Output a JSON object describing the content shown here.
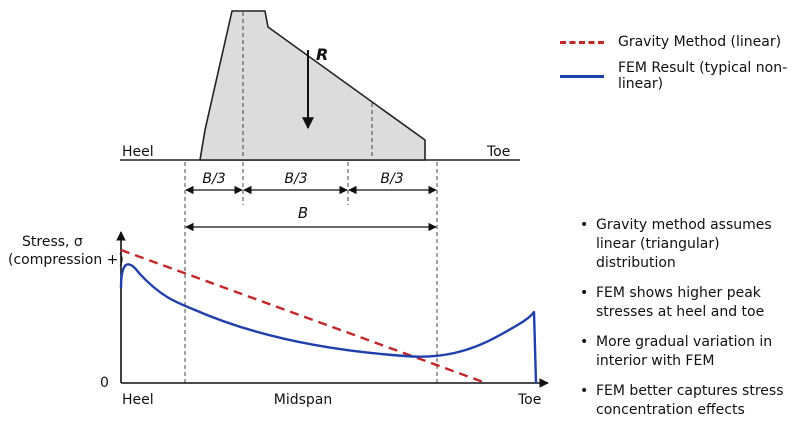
{
  "dam": {
    "resultant": "R",
    "heel": "Heel",
    "toe": "Toe",
    "thirds": [
      "B/3",
      "B/3",
      "B/3"
    ],
    "base": "B"
  },
  "plot": {
    "ylabel_line1": "Stress, σ",
    "ylabel_line2": "(compression +)",
    "zero": "0",
    "x_heel": "Heel",
    "x_mid": "Midspan",
    "x_toe": "Toe"
  },
  "legend": {
    "items": [
      {
        "label": "Gravity Method (linear)",
        "color": "#c0282a",
        "style": "dashed"
      },
      {
        "label": "FEM Result (typical non-linear)",
        "color": "#1f3faa",
        "style": "solid"
      }
    ]
  },
  "notes": [
    "Gravity method assumes linear (triangular) distribution",
    "FEM shows higher peak stresses at heel and toe",
    "More gradual variation in interior with FEM",
    "FEM better captures stress concentration effects"
  ]
}
